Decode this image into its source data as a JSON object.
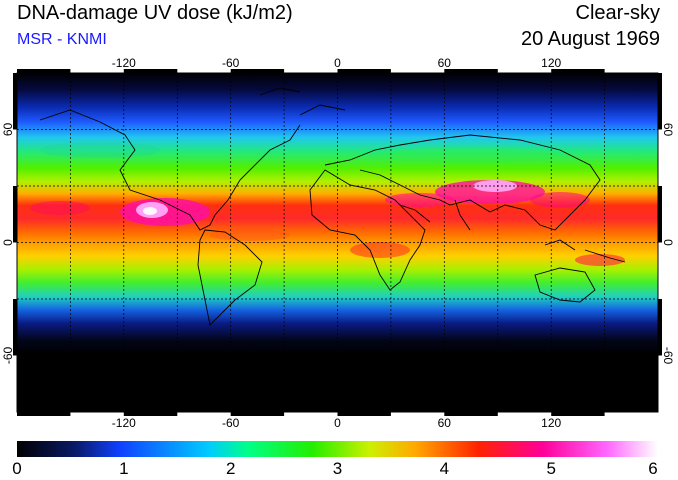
{
  "header": {
    "title": "DNA-damage UV dose (kJ/m2)",
    "source": "MSR - KNMI",
    "sky_condition": "Clear-sky",
    "date": "20 August 1969"
  },
  "map": {
    "longitude_ticks": [
      "-120",
      "-60",
      "0",
      "60",
      "120"
    ],
    "latitude_ticks": [
      "60",
      "0",
      "-60"
    ],
    "longitude_values": [
      -120,
      -60,
      0,
      60,
      120
    ],
    "latitude_values": [
      60,
      0,
      -60
    ],
    "grid_longitude_step_deg": 30,
    "grid_latitude_step_deg": 30
  },
  "colorbar": {
    "labels": [
      "0",
      "1",
      "2",
      "3",
      "4",
      "5",
      "6"
    ],
    "min": 0,
    "max": 6,
    "stops": [
      "#000000",
      "#0a1a66",
      "#1040ff",
      "#00ccff",
      "#00ff88",
      "#22ee00",
      "#ccf000",
      "#ffaa00",
      "#ff2200",
      "#ff0099",
      "#ff66ff",
      "#ffffff"
    ]
  }
}
